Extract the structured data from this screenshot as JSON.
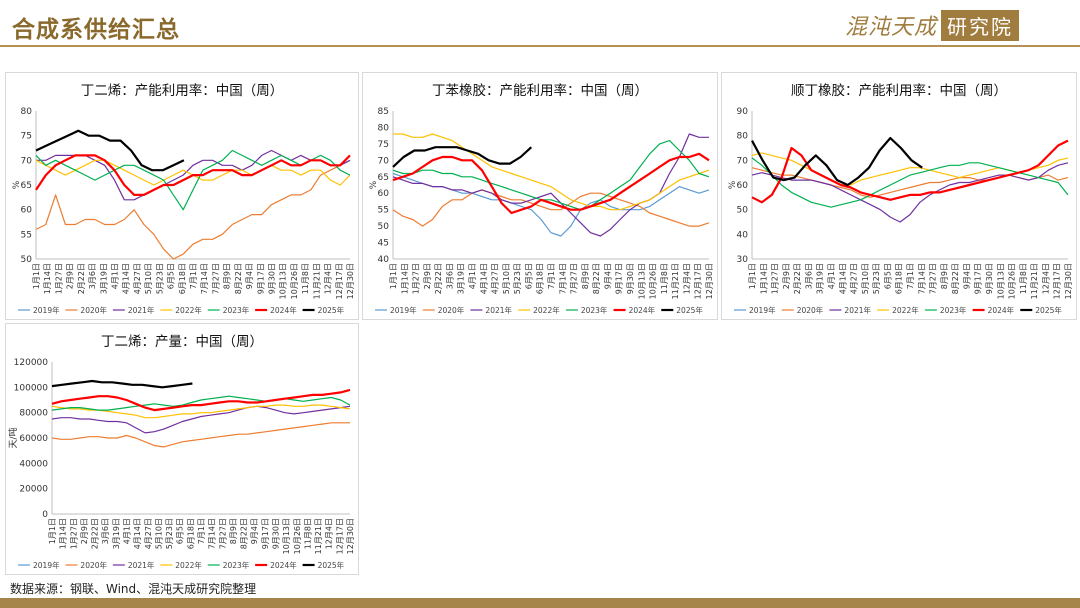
{
  "page": {
    "title": "合成系供给汇总",
    "logo_text": "混沌天成",
    "logo_badge": "研究院",
    "footnote": "数据来源：钢联、Wind、混沌天成研究院整理",
    "accent_color": "#a5854a"
  },
  "x_tick_labels": [
    "1月1日",
    "1月14日",
    "1月27日",
    "2月9日",
    "2月22日",
    "3月6日",
    "3月19日",
    "4月1日",
    "4月14日",
    "4月27日",
    "5月10日",
    "5月23日",
    "6月5日",
    "6月18日",
    "7月1日",
    "7月14日",
    "7月27日",
    "8月9日",
    "8月22日",
    "9月4日",
    "9月17日",
    "9月30日",
    "10月13日",
    "10月26日",
    "11月8日",
    "11月21日",
    "12月4日",
    "12月17日",
    "12月30日"
  ],
  "legend": [
    {
      "name": "2019年",
      "color": "#5b9bd5"
    },
    {
      "name": "2020年",
      "color": "#ed7d31"
    },
    {
      "name": "2021年",
      "color": "#7030a0"
    },
    {
      "name": "2022年",
      "color": "#ffc000"
    },
    {
      "name": "2023年",
      "color": "#00b050"
    },
    {
      "name": "2024年",
      "color": "#ff0000"
    },
    {
      "name": "2025年",
      "color": "#000000"
    }
  ],
  "chart_data": [
    {
      "type": "line",
      "title": "丁二烯：产能利用率：中国（周）",
      "ylabel": "%",
      "ylim": [
        50,
        80
      ],
      "yticks": [
        50,
        55,
        60,
        65,
        70,
        75,
        80
      ],
      "series": [
        {
          "name": "2019年",
          "values": []
        },
        {
          "name": "2020年",
          "values": [
            56,
            57,
            63,
            57,
            57,
            58,
            58,
            57,
            57,
            58,
            60,
            57,
            55,
            52,
            50,
            51,
            53,
            54,
            54,
            55,
            57,
            58,
            59,
            59,
            61,
            62,
            63,
            63,
            64,
            67,
            68,
            69,
            70
          ]
        },
        {
          "name": "2021年",
          "values": [
            70,
            70,
            71,
            71,
            71,
            71,
            70,
            69,
            66,
            62,
            62,
            63,
            64,
            65,
            66,
            67,
            69,
            70,
            70,
            69,
            69,
            68,
            69,
            71,
            72,
            71,
            70,
            71,
            70,
            70,
            69,
            69,
            70
          ]
        },
        {
          "name": "2022年",
          "values": [
            70,
            69,
            68,
            67,
            68,
            69,
            70,
            70,
            69,
            68,
            67,
            66,
            65,
            66,
            67,
            68,
            67,
            66,
            66,
            67,
            68,
            68,
            67,
            68,
            69,
            68,
            68,
            67,
            68,
            68,
            66,
            65,
            67
          ]
        },
        {
          "name": "2023年",
          "values": [
            71,
            69,
            70,
            69,
            68,
            67,
            66,
            67,
            68,
            69,
            69,
            68,
            67,
            66,
            63,
            60,
            64,
            68,
            69,
            70,
            72,
            71,
            70,
            69,
            70,
            71,
            70,
            69,
            70,
            71,
            70,
            68,
            67
          ]
        },
        {
          "name": "2024年",
          "values": [
            64,
            67,
            69,
            70,
            71,
            71,
            71,
            70,
            68,
            65,
            63,
            63,
            64,
            65,
            65,
            66,
            67,
            67,
            68,
            68,
            68,
            67,
            67,
            68,
            69,
            70,
            69,
            69,
            70,
            70,
            69,
            69,
            71
          ]
        },
        {
          "name": "2025年",
          "values": [
            72,
            73,
            74,
            75,
            76,
            75,
            75,
            74,
            74,
            72,
            69,
            68,
            68,
            69,
            70
          ]
        }
      ]
    },
    {
      "type": "line",
      "title": "丁苯橡胶：产能利用率：中国（周）",
      "ylabel": "%",
      "ylim": [
        40,
        85
      ],
      "yticks": [
        40,
        45,
        50,
        55,
        60,
        65,
        70,
        75,
        80,
        85
      ],
      "series": [
        {
          "name": "2019年",
          "values": [
            66,
            65,
            64,
            63,
            62,
            62,
            61,
            60,
            60,
            59,
            58,
            58,
            57,
            56,
            55,
            52,
            48,
            47,
            50,
            55,
            57,
            58,
            56,
            55,
            55,
            55,
            56,
            58,
            60,
            62,
            61,
            60,
            61
          ]
        },
        {
          "name": "2020年",
          "values": [
            55,
            53,
            52,
            50,
            52,
            56,
            58,
            58,
            60,
            61,
            60,
            59,
            58,
            58,
            57,
            56,
            55,
            55,
            57,
            59,
            60,
            60,
            59,
            58,
            57,
            56,
            54,
            53,
            52,
            51,
            50,
            50,
            51
          ]
        },
        {
          "name": "2021年",
          "values": [
            65,
            64,
            63,
            63,
            62,
            62,
            61,
            61,
            60,
            61,
            60,
            58,
            57,
            57,
            58,
            59,
            60,
            57,
            54,
            51,
            48,
            47,
            49,
            52,
            55,
            57,
            58,
            60,
            66,
            71,
            78,
            77,
            77
          ]
        },
        {
          "name": "2022年",
          "values": [
            78,
            78,
            77,
            77,
            78,
            77,
            76,
            74,
            72,
            70,
            68,
            67,
            66,
            65,
            64,
            63,
            62,
            60,
            58,
            57,
            56,
            56,
            55,
            55,
            56,
            57,
            58,
            60,
            62,
            64,
            65,
            66,
            67
          ]
        },
        {
          "name": "2023年",
          "values": [
            67,
            66,
            66,
            67,
            67,
            66,
            66,
            65,
            65,
            64,
            63,
            62,
            61,
            60,
            59,
            58,
            58,
            57,
            56,
            55,
            56,
            58,
            60,
            62,
            64,
            68,
            72,
            75,
            76,
            73,
            70,
            66,
            65
          ]
        },
        {
          "name": "2024年",
          "values": [
            64,
            65,
            66,
            68,
            70,
            71,
            71,
            70,
            70,
            67,
            62,
            57,
            54,
            55,
            56,
            58,
            57,
            56,
            55,
            55,
            56,
            57,
            58,
            60,
            62,
            64,
            66,
            68,
            70,
            71,
            71,
            72,
            70
          ]
        },
        {
          "name": "2025年",
          "values": [
            68,
            71,
            73,
            73,
            74,
            74,
            74,
            73,
            72,
            70,
            69,
            69,
            71,
            74
          ]
        }
      ]
    },
    {
      "type": "line",
      "title": "顺丁橡胶：产能利用率：中国（周）",
      "ylabel": "%",
      "ylim": [
        30,
        90
      ],
      "yticks": [
        30,
        40,
        50,
        60,
        70,
        80,
        90
      ],
      "series": [
        {
          "name": "2019年",
          "values": []
        },
        {
          "name": "2020年",
          "values": [
            67,
            66,
            65,
            64,
            64,
            63,
            62,
            61,
            60,
            59,
            58,
            56,
            55,
            56,
            57,
            58,
            59,
            60,
            61,
            61,
            62,
            63,
            63,
            62,
            62,
            63,
            64,
            63,
            62,
            63,
            64,
            62,
            63
          ]
        },
        {
          "name": "2021年",
          "values": [
            64,
            65,
            64,
            63,
            62,
            62,
            62,
            61,
            60,
            58,
            56,
            54,
            52,
            50,
            47,
            45,
            48,
            53,
            56,
            58,
            60,
            61,
            61,
            62,
            63,
            64,
            64,
            63,
            62,
            63,
            66,
            68,
            69
          ]
        },
        {
          "name": "2022年",
          "values": [
            72,
            73,
            72,
            71,
            70,
            68,
            66,
            64,
            62,
            60,
            60,
            62,
            63,
            64,
            65,
            66,
            67,
            67,
            66,
            65,
            64,
            63,
            64,
            65,
            66,
            67,
            66,
            65,
            66,
            67,
            68,
            70,
            71
          ]
        },
        {
          "name": "2023年",
          "values": [
            71,
            68,
            64,
            60,
            57,
            55,
            53,
            52,
            51,
            52,
            53,
            54,
            56,
            58,
            60,
            62,
            64,
            65,
            66,
            67,
            68,
            68,
            69,
            69,
            68,
            67,
            66,
            65,
            64,
            63,
            62,
            61,
            56
          ]
        },
        {
          "name": "2024年",
          "values": [
            55,
            53,
            56,
            63,
            75,
            72,
            66,
            64,
            62,
            60,
            59,
            57,
            56,
            55,
            54,
            55,
            56,
            56,
            57,
            57,
            58,
            59,
            60,
            61,
            62,
            63,
            64,
            65,
            66,
            68,
            72,
            76,
            78
          ]
        },
        {
          "name": "2025年",
          "values": [
            78,
            70,
            63,
            62,
            63,
            68,
            72,
            68,
            62,
            60,
            63,
            67,
            74,
            79,
            75,
            70,
            67
          ]
        }
      ]
    },
    {
      "type": "line",
      "title": "丁二烯：产量：中国（周）",
      "ylabel": "天/吨",
      "ylim": [
        0,
        120000
      ],
      "yticks": [
        0,
        20000,
        40000,
        60000,
        80000,
        100000,
        120000
      ],
      "series": [
        {
          "name": "2019年",
          "values": []
        },
        {
          "name": "2020年",
          "values": [
            60000,
            59000,
            59000,
            60000,
            61000,
            61000,
            60000,
            60000,
            62000,
            60000,
            57000,
            54000,
            53000,
            55000,
            57000,
            58000,
            59000,
            60000,
            61000,
            62000,
            63000,
            63000,
            64000,
            65000,
            66000,
            67000,
            68000,
            69000,
            70000,
            71000,
            72000,
            72000,
            72000
          ]
        },
        {
          "name": "2021年",
          "values": [
            75000,
            76000,
            76000,
            75000,
            75000,
            74000,
            73000,
            73000,
            72000,
            68000,
            64000,
            65000,
            67000,
            70000,
            73000,
            75000,
            77000,
            78000,
            79000,
            80000,
            82000,
            84000,
            85000,
            84000,
            82000,
            80000,
            79000,
            80000,
            81000,
            82000,
            83000,
            84000,
            85000
          ]
        },
        {
          "name": "2022年",
          "values": [
            85000,
            84000,
            83000,
            83000,
            82000,
            82000,
            81000,
            80000,
            79000,
            78000,
            76000,
            76000,
            77000,
            78000,
            79000,
            79000,
            80000,
            80000,
            81000,
            82000,
            83000,
            84000,
            85000,
            85000,
            86000,
            86000,
            85000,
            85000,
            86000,
            86000,
            85000,
            84000,
            83000
          ]
        },
        {
          "name": "2023年",
          "values": [
            82000,
            83000,
            84000,
            84000,
            83000,
            82000,
            82000,
            83000,
            84000,
            85000,
            86000,
            87000,
            86000,
            85000,
            86000,
            88000,
            90000,
            91000,
            92000,
            93000,
            92000,
            91000,
            90000,
            89000,
            90000,
            91000,
            90000,
            89000,
            90000,
            91000,
            92000,
            90000,
            86000
          ]
        },
        {
          "name": "2024年",
          "values": [
            87000,
            89000,
            90000,
            91000,
            92000,
            93000,
            93000,
            92000,
            90000,
            87000,
            84000,
            82000,
            83000,
            84000,
            85000,
            86000,
            86000,
            87000,
            88000,
            89000,
            89000,
            88000,
            88000,
            89000,
            90000,
            91000,
            92000,
            93000,
            94000,
            94000,
            95000,
            96000,
            98000
          ]
        },
        {
          "name": "2025年",
          "values": [
            101000,
            102000,
            103000,
            104000,
            105000,
            104000,
            104000,
            103000,
            102000,
            102000,
            101000,
            100000,
            101000,
            102000,
            103000
          ]
        }
      ]
    }
  ]
}
